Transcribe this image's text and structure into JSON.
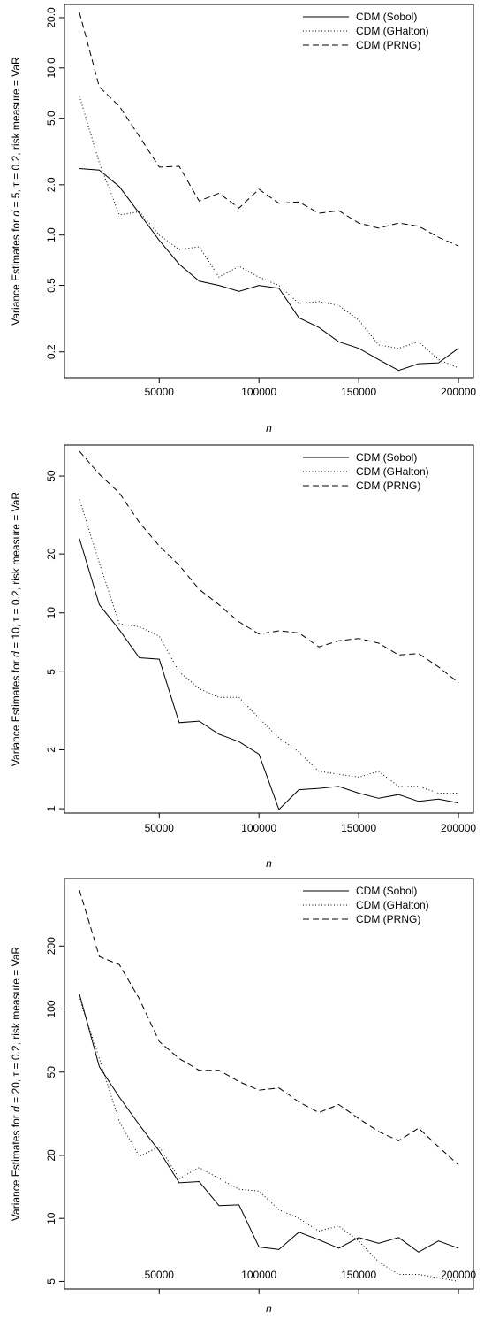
{
  "figure": {
    "legend": [
      "CDM (Sobol)",
      "CDM (GHalton)",
      "CDM (PRNG)"
    ]
  },
  "chart_data": [
    {
      "type": "line",
      "ylabel": "Variance Estimates for d = 5, τ = 0.2, risk measure = VaR",
      "ylabel_parts": {
        "pre": "Variance Estimates for ",
        "var": "d",
        "post": " = 5, τ = 0.2, risk measure = VaR"
      },
      "xlabel": "n",
      "y_log_scale": true,
      "ylim": [
        0.14,
        24
      ],
      "xlim": [
        2500,
        207500
      ],
      "yticks": [
        0.2,
        0.5,
        1.0,
        2.0,
        5.0,
        10.0,
        20.0
      ],
      "ytick_labels": [
        "0.2",
        "0.5",
        "1.0",
        "2.0",
        "5.0",
        "10.0",
        "20.0"
      ],
      "xticks": [
        50000,
        100000,
        150000,
        200000
      ],
      "xtick_labels": [
        "50000",
        "100000",
        "150000",
        "200000"
      ],
      "legend_position": "top-right",
      "x": [
        10000,
        20000,
        30000,
        40000,
        50000,
        60000,
        70000,
        80000,
        90000,
        100000,
        110000,
        120000,
        130000,
        140000,
        150000,
        160000,
        170000,
        180000,
        190000,
        200000
      ],
      "series": [
        {
          "name": "CDM (Sobol)",
          "dash": "solid",
          "values": [
            2.5,
            2.45,
            1.95,
            1.35,
            0.93,
            0.67,
            0.53,
            0.5,
            0.46,
            0.5,
            0.48,
            0.32,
            0.28,
            0.23,
            0.21,
            0.18,
            0.155,
            0.17,
            0.172,
            0.21
          ]
        },
        {
          "name": "CDM (GHalton)",
          "dash": "dotted",
          "values": [
            6.8,
            2.7,
            1.32,
            1.38,
            1.0,
            0.82,
            0.85,
            0.56,
            0.65,
            0.56,
            0.5,
            0.39,
            0.4,
            0.38,
            0.31,
            0.22,
            0.21,
            0.23,
            0.18,
            0.16
          ]
        },
        {
          "name": "CDM (PRNG)",
          "dash": "dashed",
          "values": [
            21.5,
            7.7,
            5.9,
            3.9,
            2.55,
            2.58,
            1.6,
            1.78,
            1.45,
            1.88,
            1.55,
            1.58,
            1.35,
            1.4,
            1.18,
            1.1,
            1.18,
            1.13,
            0.97,
            0.86
          ]
        }
      ]
    },
    {
      "type": "line",
      "ylabel": "Variance Estimates for d = 10, τ = 0.2, risk measure = VaR",
      "ylabel_parts": {
        "pre": "Variance Estimates for ",
        "var": "d",
        "post": " = 10, τ = 0.2, risk measure = VaR"
      },
      "xlabel": "n",
      "y_log_scale": true,
      "ylim": [
        0.95,
        72
      ],
      "xlim": [
        2500,
        207500
      ],
      "yticks": [
        1,
        2,
        5,
        10,
        20,
        50
      ],
      "ytick_labels": [
        "1",
        "2",
        "5",
        "10",
        "20",
        "50"
      ],
      "xticks": [
        50000,
        100000,
        150000,
        200000
      ],
      "xtick_labels": [
        "50000",
        "100000",
        "150000",
        "200000"
      ],
      "legend_position": "top-right",
      "x": [
        10000,
        20000,
        30000,
        40000,
        50000,
        60000,
        70000,
        80000,
        90000,
        100000,
        110000,
        120000,
        130000,
        140000,
        150000,
        160000,
        170000,
        180000,
        190000,
        200000
      ],
      "series": [
        {
          "name": "CDM (Sobol)",
          "dash": "solid",
          "values": [
            24,
            11,
            8.2,
            5.9,
            5.8,
            2.75,
            2.8,
            2.4,
            2.2,
            1.9,
            0.99,
            1.25,
            1.27,
            1.3,
            1.2,
            1.13,
            1.18,
            1.09,
            1.12,
            1.07
          ]
        },
        {
          "name": "CDM (GHalton)",
          "dash": "dotted",
          "values": [
            38,
            18,
            8.8,
            8.5,
            7.6,
            5.0,
            4.1,
            3.7,
            3.7,
            2.9,
            2.3,
            1.95,
            1.55,
            1.5,
            1.45,
            1.55,
            1.3,
            1.3,
            1.2,
            1.2
          ]
        },
        {
          "name": "CDM (PRNG)",
          "dash": "dashed",
          "values": [
            67,
            51,
            41,
            29,
            22,
            17.5,
            13.2,
            11,
            9.0,
            7.8,
            8.1,
            7.9,
            6.7,
            7.2,
            7.4,
            7.0,
            6.1,
            6.2,
            5.3,
            4.4
          ]
        }
      ]
    },
    {
      "type": "line",
      "ylabel": "Variance Estimates for d = 20, τ = 0.2, risk measure = VaR",
      "ylabel_parts": {
        "pre": "Variance Estimates for ",
        "var": "d",
        "post": " = 20, τ = 0.2, risk measure = VaR"
      },
      "xlabel": "n",
      "y_log_scale": true,
      "ylim": [
        4.6,
        420
      ],
      "xlim": [
        2500,
        207500
      ],
      "yticks": [
        5,
        10,
        20,
        50,
        100,
        200
      ],
      "ytick_labels": [
        "5",
        "10",
        "20",
        "50",
        "100",
        "200"
      ],
      "xticks": [
        50000,
        100000,
        150000,
        200000
      ],
      "xtick_labels": [
        "50000",
        "100000",
        "150000",
        "200000"
      ],
      "legend_position": "top-right",
      "x": [
        10000,
        20000,
        30000,
        40000,
        50000,
        60000,
        70000,
        80000,
        90000,
        100000,
        110000,
        120000,
        130000,
        140000,
        150000,
        160000,
        170000,
        180000,
        190000,
        200000
      ],
      "series": [
        {
          "name": "CDM (Sobol)",
          "dash": "solid",
          "values": [
            118,
            53,
            38,
            28,
            21,
            14.8,
            15,
            11.5,
            11.6,
            7.3,
            7.1,
            8.6,
            7.9,
            7.2,
            8.1,
            7.6,
            8.1,
            6.9,
            7.8,
            7.2
          ]
        },
        {
          "name": "CDM (GHalton)",
          "dash": "dotted",
          "values": [
            112,
            58,
            29,
            19.8,
            22,
            15.5,
            17.5,
            15.5,
            13.8,
            13.5,
            11,
            10,
            8.7,
            9.2,
            7.8,
            6.2,
            5.4,
            5.4,
            5.2,
            5.0
          ]
        },
        {
          "name": "CDM (PRNG)",
          "dash": "dashed",
          "values": [
            370,
            178,
            163,
            112,
            70,
            58,
            51,
            51,
            45,
            41,
            42,
            36,
            32,
            35,
            30,
            26,
            23.5,
            27,
            22,
            18
          ]
        }
      ]
    }
  ]
}
